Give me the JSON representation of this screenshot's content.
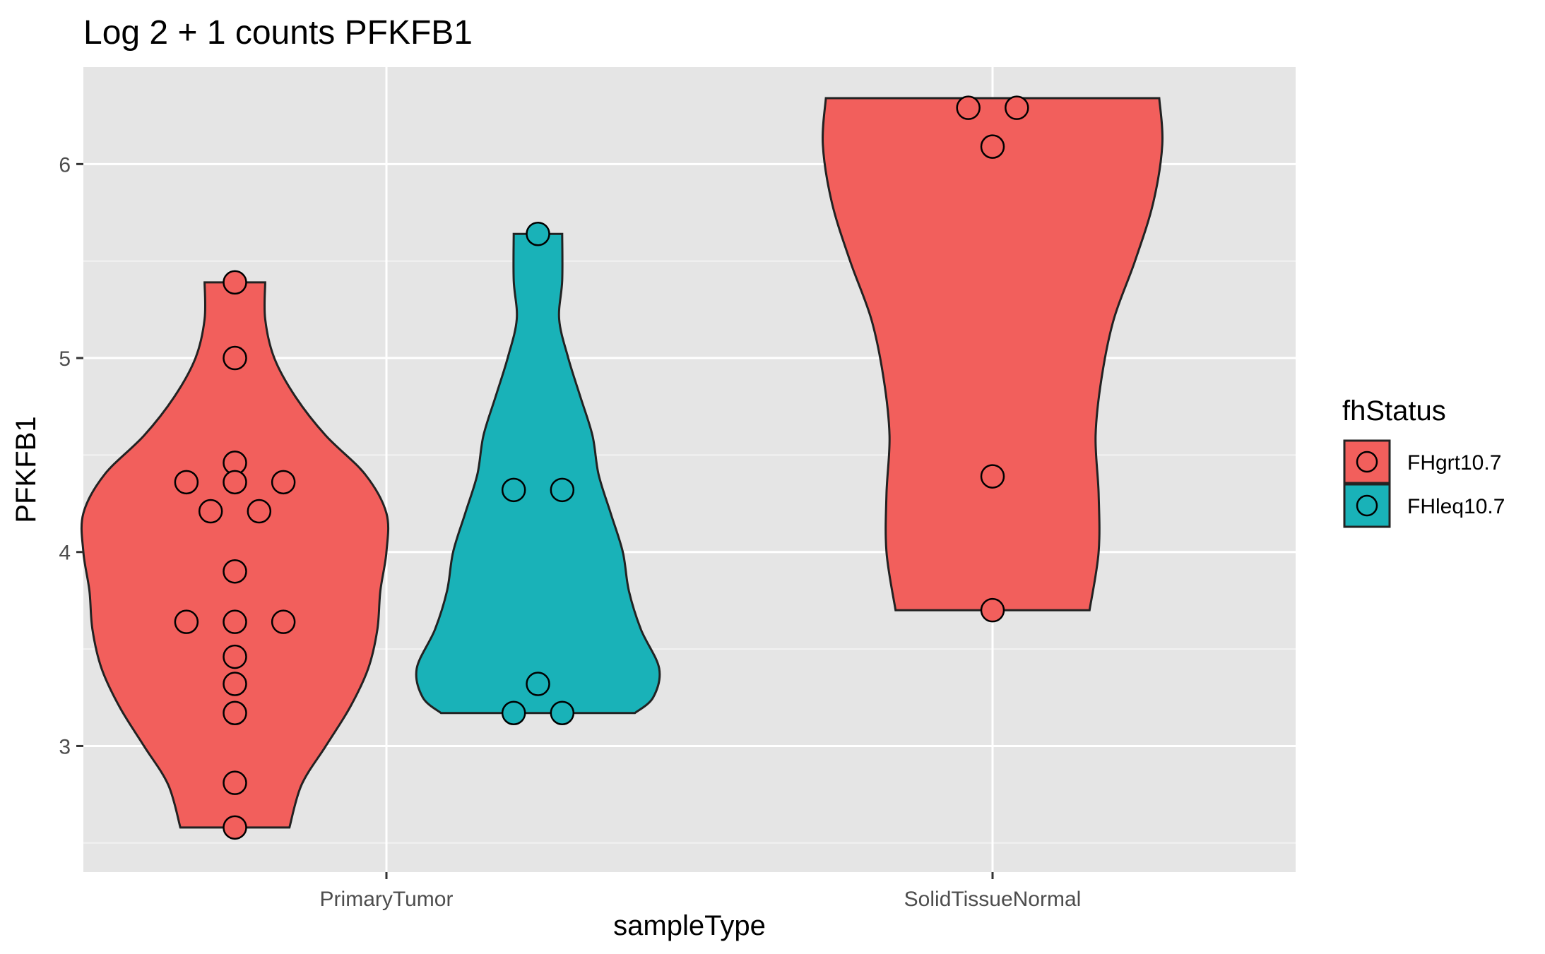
{
  "chart_data": {
    "type": "violin",
    "title": "Log 2 + 1 counts PFKFB1",
    "xlabel": "sampleType",
    "ylabel": "PFKFB1",
    "categories": [
      "PrimaryTumor",
      "SolidTissueNormal"
    ],
    "ylim": [
      2.35,
      6.5
    ],
    "yticks": [
      3,
      4,
      5,
      6
    ],
    "grid": true,
    "legend": {
      "title": "fhStatus",
      "position": "right",
      "entries": [
        {
          "label": "FHgrt10.7",
          "color": "#F25F5C"
        },
        {
          "label": "FHleq10.7",
          "color": "#19B2B8"
        }
      ]
    },
    "series": [
      {
        "name": "FHgrt10.7",
        "category": "PrimaryTumor",
        "color": "#F25F5C",
        "points": [
          {
            "dx": 0,
            "y": 5.39
          },
          {
            "dx": 0,
            "y": 5.0
          },
          {
            "dx": 0,
            "y": 4.46
          },
          {
            "dx": -0.08,
            "y": 4.36
          },
          {
            "dx": 0,
            "y": 4.36
          },
          {
            "dx": 0.08,
            "y": 4.36
          },
          {
            "dx": -0.04,
            "y": 4.21
          },
          {
            "dx": 0.04,
            "y": 4.21
          },
          {
            "dx": 0,
            "y": 3.9
          },
          {
            "dx": -0.08,
            "y": 3.64
          },
          {
            "dx": 0,
            "y": 3.64
          },
          {
            "dx": 0.08,
            "y": 3.64
          },
          {
            "dx": 0,
            "y": 3.46
          },
          {
            "dx": 0,
            "y": 3.32
          },
          {
            "dx": 0,
            "y": 3.17
          },
          {
            "dx": 0,
            "y": 2.81
          },
          {
            "dx": 0,
            "y": 2.58
          }
        ],
        "violin": [
          {
            "y": 2.58,
            "w": 0.18
          },
          {
            "y": 2.8,
            "w": 0.22
          },
          {
            "y": 3.0,
            "w": 0.3
          },
          {
            "y": 3.2,
            "w": 0.38
          },
          {
            "y": 3.4,
            "w": 0.44
          },
          {
            "y": 3.6,
            "w": 0.47
          },
          {
            "y": 3.8,
            "w": 0.48
          },
          {
            "y": 4.0,
            "w": 0.5
          },
          {
            "y": 4.2,
            "w": 0.5
          },
          {
            "y": 4.4,
            "w": 0.43
          },
          {
            "y": 4.6,
            "w": 0.3
          },
          {
            "y": 4.8,
            "w": 0.2
          },
          {
            "y": 5.0,
            "w": 0.13
          },
          {
            "y": 5.2,
            "w": 0.1
          },
          {
            "y": 5.39,
            "w": 0.1
          }
        ]
      },
      {
        "name": "FHleq10.7",
        "category": "PrimaryTumor",
        "color": "#19B2B8",
        "points": [
          {
            "dx": 0,
            "y": 5.64
          },
          {
            "dx": -0.04,
            "y": 4.32
          },
          {
            "dx": 0.04,
            "y": 4.32
          },
          {
            "dx": 0,
            "y": 3.32
          },
          {
            "dx": -0.04,
            "y": 3.17
          },
          {
            "dx": 0.04,
            "y": 3.17
          }
        ],
        "violin": [
          {
            "y": 3.17,
            "w": 0.32
          },
          {
            "y": 3.25,
            "w": 0.38
          },
          {
            "y": 3.4,
            "w": 0.4
          },
          {
            "y": 3.6,
            "w": 0.34
          },
          {
            "y": 3.8,
            "w": 0.3
          },
          {
            "y": 4.0,
            "w": 0.28
          },
          {
            "y": 4.2,
            "w": 0.24
          },
          {
            "y": 4.4,
            "w": 0.2
          },
          {
            "y": 4.6,
            "w": 0.18
          },
          {
            "y": 4.8,
            "w": 0.14
          },
          {
            "y": 5.0,
            "w": 0.1
          },
          {
            "y": 5.2,
            "w": 0.07
          },
          {
            "y": 5.4,
            "w": 0.08
          },
          {
            "y": 5.64,
            "w": 0.08
          }
        ]
      },
      {
        "name": "FHgrt10.7",
        "category": "SolidTissueNormal",
        "color": "#F25F5C",
        "points": [
          {
            "dx": -0.04,
            "y": 6.29
          },
          {
            "dx": 0.04,
            "y": 6.29
          },
          {
            "dx": 0,
            "y": 6.09
          },
          {
            "dx": 0,
            "y": 4.39
          },
          {
            "dx": 0,
            "y": 3.7
          }
        ],
        "violin": [
          {
            "y": 3.7,
            "w": 0.32
          },
          {
            "y": 4.0,
            "w": 0.35
          },
          {
            "y": 4.3,
            "w": 0.35
          },
          {
            "y": 4.6,
            "w": 0.34
          },
          {
            "y": 4.9,
            "w": 0.36
          },
          {
            "y": 5.2,
            "w": 0.4
          },
          {
            "y": 5.5,
            "w": 0.47
          },
          {
            "y": 5.8,
            "w": 0.53
          },
          {
            "y": 6.1,
            "w": 0.56
          },
          {
            "y": 6.34,
            "w": 0.55
          }
        ]
      }
    ]
  }
}
